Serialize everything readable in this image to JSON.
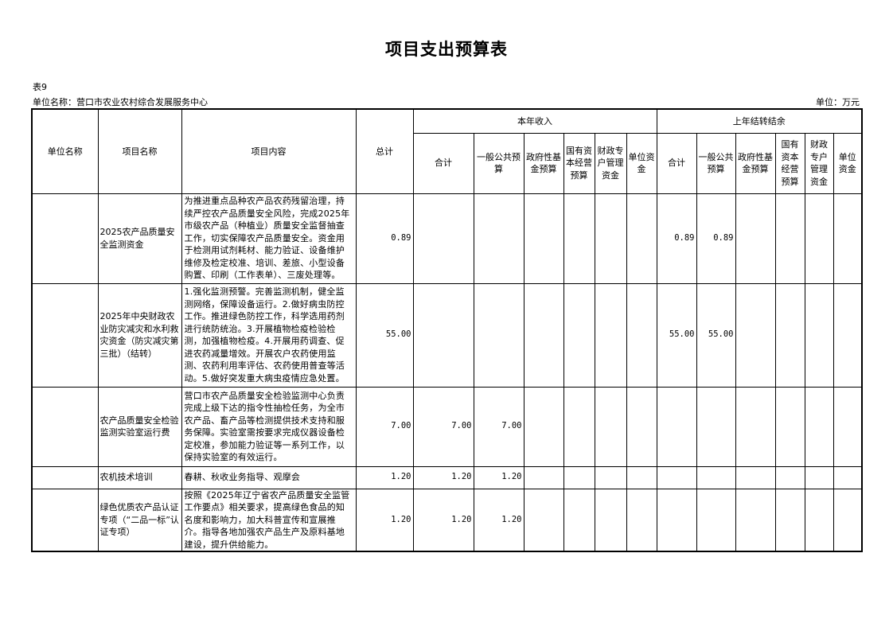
{
  "title": "项目支出预算表",
  "table_no": "表9",
  "unit_name": "单位名称：营口市农业农村综合发展服务中心",
  "unit": "单位：万元",
  "headers": {
    "unit_name": "单位名称",
    "project_name": "项目名称",
    "content": "项目内容",
    "total": "总计",
    "this_year": "本年收入",
    "last_year": "上年结转结余",
    "this_year_cols": [
      "合计",
      "一般公共预算",
      "政府性基金预算",
      "国有资本经营预算",
      "财政专户管理资金",
      "单位资金"
    ],
    "last_year_cols": [
      "合计",
      "一般公共预算",
      "政府性基金预算",
      "国有资本经营预算",
      "财政专户管理资金",
      "单位资金"
    ]
  },
  "rows": [
    {
      "unit": "",
      "name": "2025农产品质量安全监测资金",
      "content": "为推进重点品种农产品农药残留治理，持续严控农产品质量安全风险，完成2025年市级农产品（种植业）质量安全监督抽查工作，切实保障农产品质量安全。资金用于检测用试剂耗材、能力验证、设备维护维修及检定校准、培训、差旅、小型设备购置、印刷（工作表单）、三废处理等。",
      "total": "0.89",
      "values": [
        "",
        "",
        "",
        "",
        "",
        "",
        "0.89",
        "0.89",
        "",
        "",
        "",
        ""
      ]
    },
    {
      "unit": "",
      "name": "2025年中央财政农业防灾减灾和水利救灾资金（防灾减灾第三批）（结转）",
      "content": "1.强化监测预警。完善监测机制，健全监测网络，保障设备运行。2.做好病虫防控工作。推进绿色防控工作，科学选用药剂进行统防统治。3.开展植物检疫检验检测，加强植物检疫。4.开展用药调查、促进农药减量增效。开展农户农药使用监测、农药利用率评估、农药使用普查等活动。5.做好突发重大病虫疫情应急处置。",
      "total": "55.00",
      "values": [
        "",
        "",
        "",
        "",
        "",
        "",
        "55.00",
        "55.00",
        "",
        "",
        "",
        ""
      ]
    },
    {
      "unit": "",
      "name": "农产品质量安全检验监测实验室运行费",
      "content": "营口市农产品质量安全检验监测中心负责完成上级下达的指令性抽检任务，为全市农产品、畜产品等检测提供技术支持和服务保障。实验室需按要求完成仪器设备检定校准，参加能力验证等一系列工作，以保持实验室的有效运行。",
      "total": "7.00",
      "values": [
        "7.00",
        "7.00",
        "",
        "",
        "",
        "",
        "",
        "",
        "",
        "",
        "",
        ""
      ]
    },
    {
      "unit": "",
      "name": "农机技术培训",
      "content": "春耕、秋收业务指导、观摩会",
      "total": "1.20",
      "values": [
        "1.20",
        "1.20",
        "",
        "",
        "",
        "",
        "",
        "",
        "",
        "",
        "",
        ""
      ]
    },
    {
      "unit": "",
      "name": "绿色优质农产品认证专项（“二品一标”认证专项）",
      "content": "按照《2025年辽宁省农产品质量安全监管工作要点》相关要求，提高绿色食品的知名度和影响力，加大科普宣传和宣展推介。指导各地加强农产品生产及原料基地建设，提升供给能力。",
      "total": "1.20",
      "values": [
        "1.20",
        "1.20",
        "",
        "",
        "",
        "",
        "",
        "",
        "",
        "",
        "",
        ""
      ]
    }
  ]
}
